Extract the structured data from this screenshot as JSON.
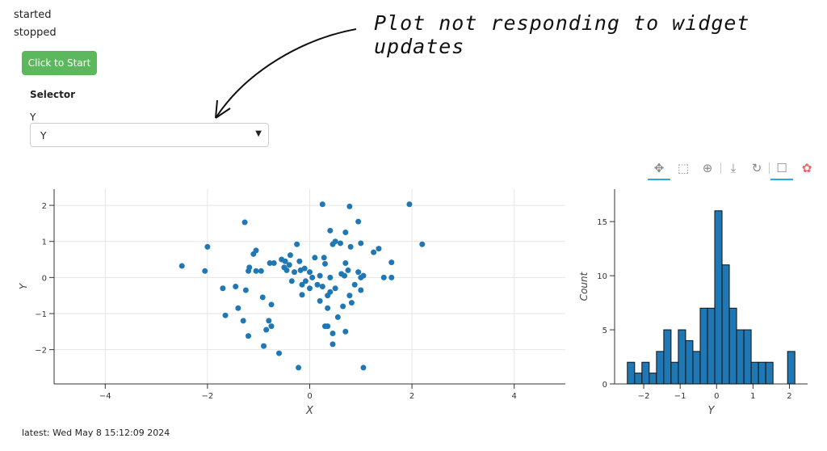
{
  "log": [
    "started",
    "stopped"
  ],
  "start_button": "Click to Start",
  "selector": {
    "title": "Selector",
    "label": "Y",
    "value": "Y"
  },
  "annotation": "Plot not responding to widget updates",
  "toolbar": [
    "pan",
    "box-zoom",
    "wheel-zoom",
    "save",
    "reset",
    "hover",
    "bokeh-logo"
  ],
  "latest": "latest: Wed May 8 15:12:09 2024",
  "accent": "#5cb85c",
  "chart_data": [
    {
      "type": "scatter",
      "xlabel": "X",
      "ylabel": "Y",
      "xlim": [
        -5,
        5
      ],
      "ylim": [
        -2.95,
        2.45
      ],
      "xticks": [
        -4,
        -2,
        0,
        2,
        4
      ],
      "yticks": [
        -2,
        -1,
        0,
        1,
        2
      ],
      "color": "#1f77b4",
      "points": [
        [
          -2.5,
          0.32
        ],
        [
          -2.05,
          0.18
        ],
        [
          -2.0,
          0.85
        ],
        [
          -1.7,
          -0.3
        ],
        [
          -1.65,
          -1.05
        ],
        [
          -1.45,
          -0.25
        ],
        [
          -1.4,
          -0.85
        ],
        [
          -1.3,
          -1.2
        ],
        [
          -1.27,
          1.53
        ],
        [
          -1.25,
          -0.35
        ],
        [
          -1.2,
          0.18
        ],
        [
          -1.18,
          0.28
        ],
        [
          -1.2,
          -1.62
        ],
        [
          -1.1,
          0.65
        ],
        [
          -1.05,
          0.75
        ],
        [
          -1.05,
          0.18
        ],
        [
          -0.95,
          0.18
        ],
        [
          -0.92,
          -0.55
        ],
        [
          -0.9,
          -1.9
        ],
        [
          -0.85,
          -1.45
        ],
        [
          -0.8,
          -1.2
        ],
        [
          -0.78,
          0.4
        ],
        [
          -0.75,
          -0.75
        ],
        [
          -0.75,
          -1.35
        ],
        [
          -0.7,
          0.4
        ],
        [
          -0.6,
          -2.1
        ],
        [
          -0.55,
          0.5
        ],
        [
          -0.5,
          0.28
        ],
        [
          -0.48,
          0.45
        ],
        [
          -0.45,
          0.2
        ],
        [
          -0.4,
          0.35
        ],
        [
          -0.38,
          0.62
        ],
        [
          -0.35,
          -0.1
        ],
        [
          -0.3,
          0.15
        ],
        [
          -0.25,
          0.92
        ],
        [
          -0.22,
          -2.5
        ],
        [
          -0.2,
          0.45
        ],
        [
          -0.18,
          0.2
        ],
        [
          -0.15,
          -0.2
        ],
        [
          -0.15,
          -0.48
        ],
        [
          -0.1,
          0.25
        ],
        [
          -0.08,
          -0.1
        ],
        [
          0.0,
          0.15
        ],
        [
          0.0,
          -0.3
        ],
        [
          0.05,
          0.0
        ],
        [
          0.1,
          0.55
        ],
        [
          0.15,
          -0.2
        ],
        [
          0.2,
          0.05
        ],
        [
          0.2,
          -0.65
        ],
        [
          0.25,
          2.03
        ],
        [
          0.25,
          -0.25
        ],
        [
          0.28,
          0.55
        ],
        [
          0.3,
          0.38
        ],
        [
          0.3,
          -1.35
        ],
        [
          0.35,
          -0.85
        ],
        [
          0.35,
          -1.35
        ],
        [
          0.35,
          -0.5
        ],
        [
          0.4,
          1.3
        ],
        [
          0.4,
          -0.4
        ],
        [
          0.4,
          0.0
        ],
        [
          0.45,
          0.92
        ],
        [
          0.45,
          -1.55
        ],
        [
          0.45,
          -1.85
        ],
        [
          0.5,
          1.0
        ],
        [
          0.5,
          -0.3
        ],
        [
          0.55,
          -1.1
        ],
        [
          0.6,
          0.95
        ],
        [
          0.62,
          0.1
        ],
        [
          0.65,
          -0.8
        ],
        [
          0.68,
          0.05
        ],
        [
          0.7,
          1.25
        ],
        [
          0.7,
          0.4
        ],
        [
          0.7,
          -1.5
        ],
        [
          0.75,
          0.2
        ],
        [
          0.78,
          -0.5
        ],
        [
          0.78,
          1.97
        ],
        [
          0.8,
          0.85
        ],
        [
          0.82,
          -0.7
        ],
        [
          0.88,
          -0.2
        ],
        [
          0.95,
          1.55
        ],
        [
          0.95,
          0.15
        ],
        [
          1.0,
          -0.35
        ],
        [
          1.0,
          0.0
        ],
        [
          1.0,
          0.95
        ],
        [
          1.05,
          0.05
        ],
        [
          1.05,
          -2.5
        ],
        [
          1.25,
          0.7
        ],
        [
          1.35,
          0.8
        ],
        [
          1.45,
          0.0
        ],
        [
          1.6,
          0.42
        ],
        [
          1.6,
          0.0
        ],
        [
          1.95,
          2.03
        ],
        [
          2.2,
          0.92
        ]
      ]
    },
    {
      "type": "bar",
      "xlabel": "Y",
      "ylabel": "Count",
      "xlim": [
        -2.8,
        2.5
      ],
      "ylim": [
        0,
        18
      ],
      "xticks": [
        -2,
        -1,
        0,
        1,
        2
      ],
      "yticks": [
        0,
        5,
        10,
        15
      ],
      "color": "#1f77b4",
      "bins": [
        [
          -2.45,
          -2.25,
          2
        ],
        [
          -2.25,
          -2.05,
          1
        ],
        [
          -2.05,
          -1.85,
          2
        ],
        [
          -1.85,
          -1.65,
          1
        ],
        [
          -1.65,
          -1.45,
          3
        ],
        [
          -1.45,
          -1.25,
          5
        ],
        [
          -1.25,
          -1.05,
          2
        ],
        [
          -1.05,
          -0.85,
          5
        ],
        [
          -0.85,
          -0.65,
          4
        ],
        [
          -0.65,
          -0.45,
          3
        ],
        [
          -0.45,
          -0.25,
          7
        ],
        [
          -0.25,
          -0.05,
          7
        ],
        [
          -0.05,
          0.15,
          16
        ],
        [
          0.15,
          0.35,
          11
        ],
        [
          0.35,
          0.55,
          7
        ],
        [
          0.55,
          0.75,
          5
        ],
        [
          0.75,
          0.95,
          5
        ],
        [
          0.95,
          1.15,
          2
        ],
        [
          1.15,
          1.35,
          2
        ],
        [
          1.35,
          1.55,
          2
        ],
        [
          1.55,
          1.75,
          0
        ],
        [
          1.75,
          1.95,
          0
        ],
        [
          1.95,
          2.15,
          3
        ]
      ]
    }
  ]
}
